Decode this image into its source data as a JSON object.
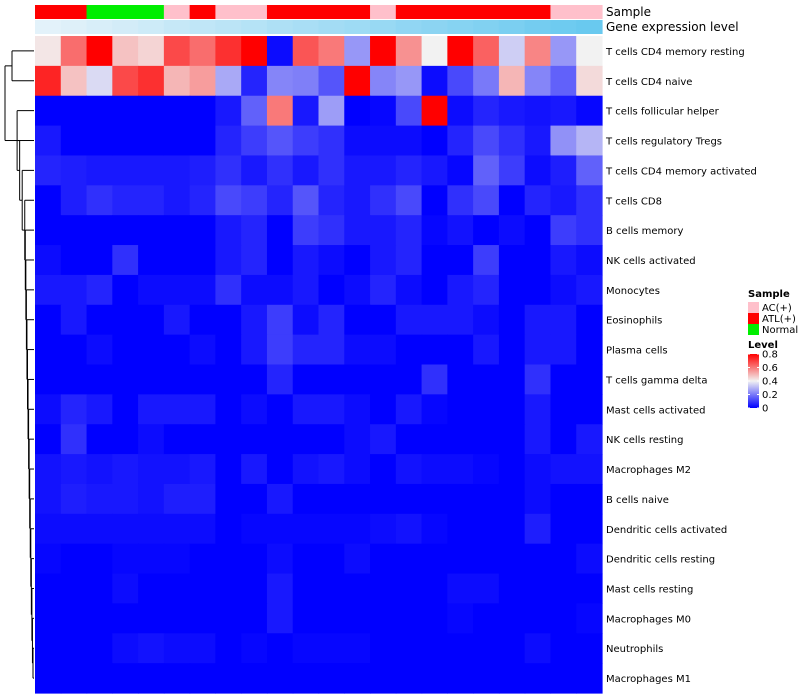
{
  "chart_data": {
    "type": "heatmap",
    "title": "",
    "annotation_tracks": [
      {
        "name": "Sample"
      },
      {
        "name": "Gene expression level"
      }
    ],
    "columns": {
      "count": 22,
      "sample_group": [
        "ATL(+)",
        "ATL(+)",
        "Normal",
        "Normal",
        "Normal",
        "AC(+)",
        "ATL(+)",
        "AC(+)",
        "AC(+)",
        "ATL(+)",
        "ATL(+)",
        "ATL(+)",
        "ATL(+)",
        "AC(+)",
        "ATL(+)",
        "ATL(+)",
        "ATL(+)",
        "ATL(+)",
        "ATL(+)",
        "ATL(+)",
        "AC(+)",
        "AC(+)"
      ],
      "expression_level": [
        0.02,
        0.06,
        0.1,
        0.14,
        0.18,
        0.23,
        0.27,
        0.31,
        0.35,
        0.4,
        0.44,
        0.48,
        0.52,
        0.56,
        0.61,
        0.65,
        0.69,
        0.73,
        0.77,
        0.82,
        0.86,
        0.9
      ]
    },
    "rows": [
      "T cells CD4 memory resting",
      "T cells CD4 naive",
      "T cells follicular helper",
      "T cells regulatory  Tregs",
      "T cells CD4 memory activated",
      "T cells CD8",
      "B cells memory",
      "NK cells activated",
      "Monocytes",
      "Eosinophils",
      "Plasma cells",
      "T cells gamma delta",
      "Mast cells activated",
      "NK cells resting",
      "Macrophages M2",
      "B cells naive",
      "Dendritic cells activated",
      "Dendritic cells resting",
      "Mast cells resting",
      "Macrophages M0",
      "Neutrophils",
      "Macrophages M1"
    ],
    "values": [
      [
        0.42,
        0.62,
        0.8,
        0.48,
        0.45,
        0.68,
        0.62,
        0.72,
        0.8,
        0.02,
        0.66,
        0.6,
        0.25,
        0.8,
        0.56,
        0.4,
        0.8,
        0.64,
        0.34,
        0.58,
        0.25,
        0.4
      ],
      [
        0.74,
        0.48,
        0.36,
        0.68,
        0.72,
        0.5,
        0.54,
        0.28,
        0.06,
        0.22,
        0.21,
        0.14,
        0.8,
        0.22,
        0.25,
        0.02,
        0.12,
        0.2,
        0.5,
        0.22,
        0.16,
        0.44
      ],
      [
        0.0,
        0.0,
        0.0,
        0.0,
        0.0,
        0.0,
        0.0,
        0.04,
        0.16,
        0.6,
        0.04,
        0.26,
        0.0,
        0.01,
        0.12,
        0.8,
        0.02,
        0.06,
        0.04,
        0.03,
        0.04,
        0.01
      ],
      [
        0.04,
        0.0,
        0.0,
        0.0,
        0.0,
        0.0,
        0.0,
        0.06,
        0.1,
        0.14,
        0.1,
        0.08,
        0.02,
        0.02,
        0.02,
        0.0,
        0.06,
        0.12,
        0.08,
        0.04,
        0.24,
        0.3
      ],
      [
        0.06,
        0.05,
        0.04,
        0.04,
        0.04,
        0.04,
        0.05,
        0.08,
        0.04,
        0.08,
        0.04,
        0.08,
        0.04,
        0.04,
        0.06,
        0.04,
        0.01,
        0.16,
        0.1,
        0.02,
        0.05,
        0.16
      ],
      [
        0.0,
        0.05,
        0.08,
        0.06,
        0.06,
        0.04,
        0.06,
        0.12,
        0.1,
        0.06,
        0.14,
        0.06,
        0.04,
        0.08,
        0.12,
        0.0,
        0.08,
        0.12,
        0.0,
        0.06,
        0.04,
        0.08
      ],
      [
        0.0,
        0.0,
        0.0,
        0.0,
        0.0,
        0.0,
        0.0,
        0.04,
        0.06,
        0.0,
        0.1,
        0.08,
        0.04,
        0.04,
        0.06,
        0.01,
        0.03,
        0.0,
        0.02,
        0.0,
        0.1,
        0.08
      ],
      [
        0.02,
        0.0,
        0.0,
        0.08,
        0.0,
        0.0,
        0.0,
        0.04,
        0.06,
        0.0,
        0.04,
        0.02,
        0.0,
        0.04,
        0.06,
        0.0,
        0.0,
        0.1,
        0.0,
        0.0,
        0.04,
        0.02
      ],
      [
        0.04,
        0.04,
        0.06,
        0.0,
        0.02,
        0.02,
        0.02,
        0.08,
        0.02,
        0.02,
        0.04,
        0.0,
        0.02,
        0.06,
        0.02,
        0.0,
        0.04,
        0.06,
        0.0,
        0.0,
        0.02,
        0.04
      ],
      [
        0.0,
        0.04,
        0.0,
        0.0,
        0.0,
        0.04,
        0.0,
        0.0,
        0.04,
        0.1,
        0.02,
        0.06,
        0.0,
        0.0,
        0.04,
        0.04,
        0.04,
        0.02,
        0.0,
        0.04,
        0.04,
        0.0
      ],
      [
        0.0,
        0.0,
        0.02,
        0.0,
        0.0,
        0.0,
        0.02,
        0.0,
        0.04,
        0.1,
        0.06,
        0.06,
        0.02,
        0.02,
        0.0,
        0.0,
        0.0,
        0.04,
        0.0,
        0.04,
        0.04,
        0.0
      ],
      [
        0.0,
        0.0,
        0.0,
        0.0,
        0.0,
        0.0,
        0.0,
        0.0,
        0.0,
        0.06,
        0.0,
        0.0,
        0.0,
        0.0,
        0.0,
        0.08,
        0.0,
        0.0,
        0.0,
        0.08,
        0.0,
        0.0
      ],
      [
        0.02,
        0.06,
        0.04,
        0.0,
        0.04,
        0.04,
        0.04,
        0.0,
        0.02,
        0.0,
        0.04,
        0.04,
        0.02,
        0.0,
        0.04,
        0.01,
        0.0,
        0.0,
        0.0,
        0.04,
        0.0,
        0.0
      ],
      [
        0.0,
        0.08,
        0.0,
        0.0,
        0.02,
        0.0,
        0.0,
        0.0,
        0.0,
        0.0,
        0.0,
        0.0,
        0.02,
        0.04,
        0.0,
        0.0,
        0.0,
        0.0,
        0.0,
        0.04,
        0.0,
        0.04
      ],
      [
        0.03,
        0.04,
        0.03,
        0.04,
        0.03,
        0.03,
        0.04,
        0.0,
        0.04,
        0.0,
        0.03,
        0.04,
        0.02,
        0.0,
        0.03,
        0.02,
        0.02,
        0.01,
        0.0,
        0.02,
        0.03,
        0.03
      ],
      [
        0.03,
        0.05,
        0.04,
        0.04,
        0.03,
        0.05,
        0.05,
        0.0,
        0.0,
        0.04,
        0.0,
        0.0,
        0.0,
        0.0,
        0.0,
        0.0,
        0.0,
        0.0,
        0.0,
        0.02,
        0.0,
        0.0
      ],
      [
        0.02,
        0.02,
        0.02,
        0.02,
        0.02,
        0.02,
        0.02,
        0.0,
        0.01,
        0.01,
        0.01,
        0.01,
        0.01,
        0.02,
        0.03,
        0.01,
        0.0,
        0.0,
        0.0,
        0.05,
        0.0,
        0.0
      ],
      [
        0.01,
        0.0,
        0.0,
        0.01,
        0.01,
        0.01,
        0.0,
        0.0,
        0.0,
        0.02,
        0.0,
        0.0,
        0.02,
        0.0,
        0.0,
        0.0,
        0.0,
        0.0,
        0.0,
        0.0,
        0.0,
        0.02
      ],
      [
        0.0,
        0.0,
        0.0,
        0.02,
        0.0,
        0.0,
        0.0,
        0.0,
        0.0,
        0.04,
        0.0,
        0.0,
        0.0,
        0.0,
        0.0,
        0.0,
        0.02,
        0.02,
        0.0,
        0.0,
        0.0,
        0.0
      ],
      [
        0.0,
        0.0,
        0.0,
        0.0,
        0.0,
        0.0,
        0.0,
        0.0,
        0.0,
        0.04,
        0.0,
        0.0,
        0.0,
        0.0,
        0.0,
        0.0,
        0.01,
        0.0,
        0.0,
        0.0,
        0.0,
        0.01
      ],
      [
        0.0,
        0.0,
        0.0,
        0.02,
        0.03,
        0.02,
        0.02,
        0.0,
        0.01,
        0.0,
        0.01,
        0.01,
        0.01,
        0.0,
        0.0,
        0.0,
        0.0,
        0.0,
        0.0,
        0.02,
        0.0,
        0.0
      ],
      [
        0.0,
        0.0,
        0.0,
        0.0,
        0.0,
        0.0,
        0.0,
        0.0,
        0.0,
        0.0,
        0.0,
        0.0,
        0.0,
        0.0,
        0.0,
        0.0,
        0.0,
        0.0,
        0.0,
        0.0,
        0.0,
        0.0
      ]
    ],
    "color_scale": {
      "title": "Level",
      "min": 0,
      "max": 0.8,
      "ticks": [
        0,
        0.2,
        0.4,
        0.6,
        0.8
      ],
      "tick_labels": [
        "0",
        "0.2",
        "0.4",
        "0.6",
        "0.8"
      ],
      "low_color": "#0000FF",
      "mid_color": "#F2F2F2",
      "high_color": "#FF0000",
      "mid_value": 0.4
    },
    "sample_legend": {
      "title": "Sample",
      "entries": [
        {
          "label": "AC(+)",
          "color": "#FFC0CB"
        },
        {
          "label": "ATL(+)",
          "color": "#FF0000"
        },
        {
          "label": "Normal",
          "color": "#00EE00"
        }
      ]
    },
    "expression_track_colors": {
      "low": "#E6F3FA",
      "high": "#5BC4EE"
    },
    "row_dendrogram": true,
    "legend_placement": "right"
  }
}
